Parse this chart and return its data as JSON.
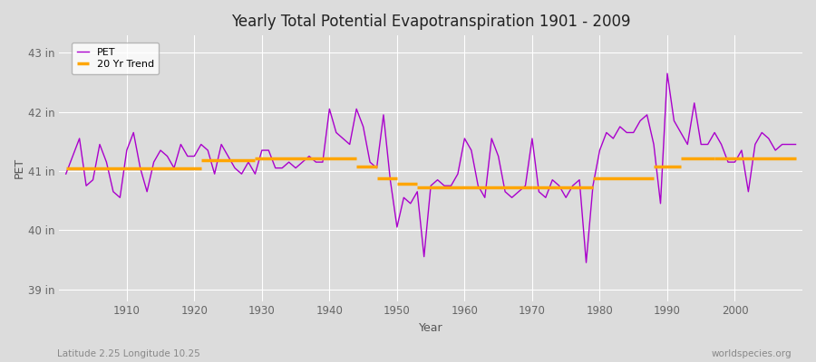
{
  "title": "Yearly Total Potential Evapotranspiration 1901 - 2009",
  "xlabel": "Year",
  "ylabel": "PET",
  "footnote_left": "Latitude 2.25 Longitude 10.25",
  "footnote_right": "worldspecies.org",
  "pet_color": "#aa00cc",
  "trend_color": "#FFA500",
  "bg_color": "#dcdcdc",
  "ylim": [
    38.8,
    43.3
  ],
  "yticks": [
    39,
    40,
    41,
    42,
    43
  ],
  "ytick_labels": [
    "39 in",
    "40 in",
    "41 in",
    "42 in",
    "43 in"
  ],
  "xlim": [
    1900,
    2010
  ],
  "xticks": [
    1910,
    1920,
    1930,
    1940,
    1950,
    1960,
    1970,
    1980,
    1990,
    2000
  ],
  "years": [
    1901,
    1902,
    1903,
    1904,
    1905,
    1906,
    1907,
    1908,
    1909,
    1910,
    1911,
    1912,
    1913,
    1914,
    1915,
    1916,
    1917,
    1918,
    1919,
    1920,
    1921,
    1922,
    1923,
    1924,
    1925,
    1926,
    1927,
    1928,
    1929,
    1930,
    1931,
    1932,
    1933,
    1934,
    1935,
    1936,
    1937,
    1938,
    1939,
    1940,
    1941,
    1942,
    1943,
    1944,
    1945,
    1946,
    1947,
    1948,
    1949,
    1950,
    1951,
    1952,
    1953,
    1954,
    1955,
    1956,
    1957,
    1958,
    1959,
    1960,
    1961,
    1962,
    1963,
    1964,
    1965,
    1966,
    1967,
    1968,
    1969,
    1970,
    1971,
    1972,
    1973,
    1974,
    1975,
    1976,
    1977,
    1978,
    1979,
    1980,
    1981,
    1982,
    1983,
    1984,
    1985,
    1986,
    1987,
    1988,
    1989,
    1990,
    1991,
    1992,
    1993,
    1994,
    1995,
    1996,
    1997,
    1998,
    1999,
    2000,
    2001,
    2002,
    2003,
    2004,
    2005,
    2006,
    2007,
    2008,
    2009
  ],
  "pet_values": [
    40.95,
    41.25,
    41.55,
    40.75,
    40.85,
    41.45,
    41.15,
    40.65,
    40.55,
    41.35,
    41.65,
    41.05,
    40.65,
    41.15,
    41.35,
    41.25,
    41.05,
    41.45,
    41.25,
    41.25,
    41.45,
    41.35,
    40.95,
    41.45,
    41.25,
    41.05,
    40.95,
    41.15,
    40.95,
    41.35,
    41.35,
    41.05,
    41.05,
    41.15,
    41.05,
    41.15,
    41.25,
    41.15,
    41.15,
    42.05,
    41.65,
    41.55,
    41.45,
    42.05,
    41.75,
    41.15,
    41.05,
    41.95,
    40.85,
    40.05,
    40.55,
    40.45,
    40.65,
    39.55,
    40.75,
    40.85,
    40.75,
    40.75,
    40.95,
    41.55,
    41.35,
    40.75,
    40.55,
    41.55,
    41.25,
    40.65,
    40.55,
    40.65,
    40.75,
    41.55,
    40.65,
    40.55,
    40.85,
    40.75,
    40.55,
    40.75,
    40.85,
    39.45,
    40.75,
    41.35,
    41.65,
    41.55,
    41.75,
    41.65,
    41.65,
    41.85,
    41.95,
    41.45,
    40.45,
    42.65,
    41.85,
    41.65,
    41.45,
    42.15,
    41.45,
    41.45,
    41.65,
    41.45,
    41.15,
    41.15,
    41.35,
    40.65,
    41.45,
    41.65,
    41.55,
    41.35,
    41.45,
    41.45,
    41.45
  ],
  "trend_segments": [
    {
      "x_start": 1901,
      "x_end": 1921,
      "y": 41.05
    },
    {
      "x_start": 1921,
      "x_end": 1929,
      "y": 41.18
    },
    {
      "x_start": 1929,
      "x_end": 1944,
      "y": 41.22
    },
    {
      "x_start": 1944,
      "x_end": 1947,
      "y": 41.08
    },
    {
      "x_start": 1947,
      "x_end": 1950,
      "y": 40.88
    },
    {
      "x_start": 1950,
      "x_end": 1953,
      "y": 40.78
    },
    {
      "x_start": 1953,
      "x_end": 1970,
      "y": 40.72
    },
    {
      "x_start": 1970,
      "x_end": 1979,
      "y": 40.72
    },
    {
      "x_start": 1979,
      "x_end": 1988,
      "y": 40.88
    },
    {
      "x_start": 1988,
      "x_end": 1992,
      "y": 41.08
    },
    {
      "x_start": 1992,
      "x_end": 1997,
      "y": 41.22
    },
    {
      "x_start": 1997,
      "x_end": 2009,
      "y": 41.22
    }
  ]
}
